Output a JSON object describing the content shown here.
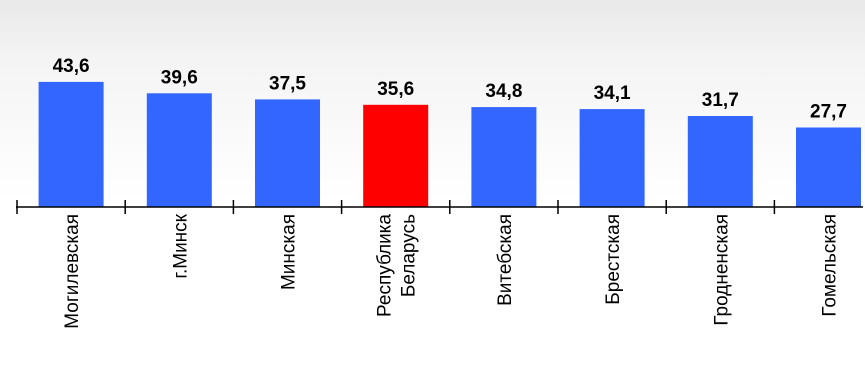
{
  "chart_data": {
    "type": "bar",
    "categories": [
      [
        "Могилевская"
      ],
      [
        "г.Минск"
      ],
      [
        "Минская"
      ],
      [
        "Республика",
        "Беларусь"
      ],
      [
        "Витебская"
      ],
      [
        "Брестская"
      ],
      [
        "Гродненская"
      ],
      [
        "Гомельская"
      ]
    ],
    "values": [
      43.6,
      39.6,
      37.5,
      35.6,
      34.8,
      34.1,
      31.7,
      27.7
    ],
    "value_labels": [
      "43,6",
      "39,6",
      "37,5",
      "35,6",
      "34,8",
      "34,1",
      "31,7",
      "27,7"
    ],
    "bar_colors": [
      "#3366ff",
      "#3366ff",
      "#3366ff",
      "#ff0000",
      "#3366ff",
      "#3366ff",
      "#3366ff",
      "#3366ff"
    ],
    "title": "",
    "xlabel": "",
    "ylabel": "",
    "grid": false,
    "legend": "none"
  }
}
